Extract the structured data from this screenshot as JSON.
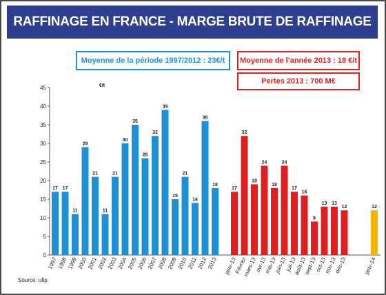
{
  "title": "RAFFINAGE EN FRANCE - MARGE BRUTE DE RAFFINAGE",
  "boxes": {
    "avg_period": "Moyenne de la période 1997/2012 : 23€/t",
    "avg_2013": "Moyenne de l’année 2013 : 18 €/t",
    "losses_2013": "Pertes 2013 : 700 M€"
  },
  "source": "Source: ufip",
  "colors": {
    "title_bg": "#2f3f8f",
    "blue": "#1e90d6",
    "red": "#e02020",
    "orange": "#f4b400"
  },
  "chart_data": {
    "type": "bar",
    "ylabel": "€/t",
    "ylim": [
      0,
      45
    ],
    "yticks": [
      0,
      5,
      10,
      15,
      20,
      25,
      30,
      35,
      40,
      45
    ],
    "grid": false,
    "series": [
      {
        "color": "#1e90d6",
        "categories": [
          "1997",
          "1998",
          "1999",
          "2000",
          "2001",
          "2002",
          "2003",
          "2004",
          "2005",
          "2006",
          "2007",
          "2008",
          "2009",
          "2010",
          "2011",
          "2012",
          "2013"
        ],
        "values": [
          17,
          17,
          11,
          29,
          21,
          11,
          21,
          30,
          35,
          26,
          32,
          39,
          15,
          21,
          14,
          36,
          18
        ],
        "labels": [
          "17",
          "17",
          "11",
          "29",
          "21",
          "11",
          "21",
          "30",
          "35",
          "26",
          "32",
          "39",
          "15",
          "21",
          "14",
          "36",
          "18"
        ]
      },
      {
        "color": "#e02020",
        "categories": [
          "janv-13",
          "Février",
          "mars-13",
          "avr-13",
          "mai-13",
          "juin-13",
          "juil-13",
          "août-13",
          "sept-13",
          "oct-13",
          "nov-13",
          "déc-13"
        ],
        "values": [
          17,
          32,
          19,
          24,
          18,
          24,
          17,
          16,
          9,
          13,
          13,
          12
        ],
        "labels": [
          "17",
          "32",
          "19",
          "24",
          "18",
          "24",
          "17",
          "16",
          "9",
          "13",
          "13",
          "12"
        ]
      },
      {
        "color": "#f4b400",
        "categories": [
          "janv-14"
        ],
        "values": [
          12
        ],
        "labels": [
          "12"
        ]
      }
    ]
  }
}
